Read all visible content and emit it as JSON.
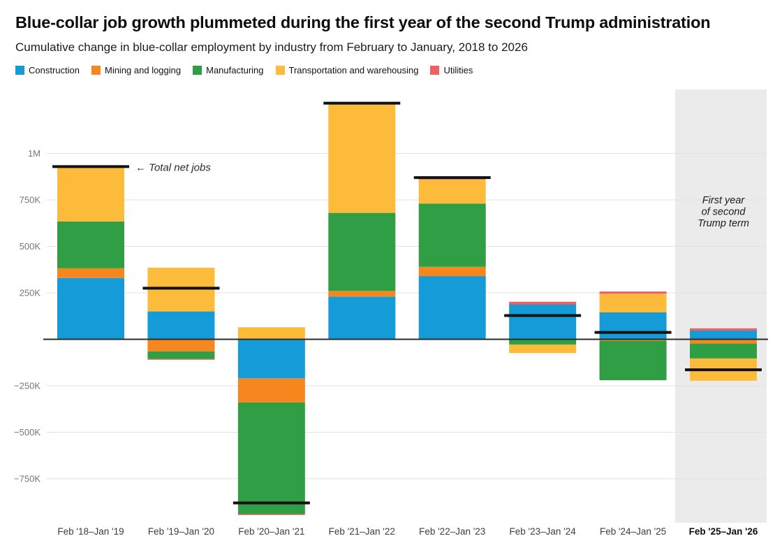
{
  "header": {
    "title": "Blue-collar job growth plummeted during the first year of the second Trump administration",
    "subtitle": "Cumulative change in blue-collar employment by industry from February to January, 2018 to 2026"
  },
  "chart_data": {
    "type": "bar",
    "stacked": true,
    "title": "Blue-collar job growth plummeted during the first year of the second Trump administration",
    "subtitle": "Cumulative change in blue-collar employment by industry from February to January, 2018 to 2026",
    "unit": "jobs",
    "categories": [
      "Feb '18–Jan '19",
      "Feb '19–Jan '20",
      "Feb '20–Jan '21",
      "Feb '21–Jan '22",
      "Feb '22–Jan '23",
      "Feb '23–Jan '24",
      "Feb '24–Jan '25",
      "Feb '25–Jan '26"
    ],
    "emphasized_category_index": 7,
    "series": [
      {
        "name": "Construction",
        "color": "#149bd8",
        "values": [
          330000,
          150000,
          -210000,
          230000,
          340000,
          188000,
          145000,
          47000
        ]
      },
      {
        "name": "Mining and logging",
        "color": "#f6871f",
        "values": [
          52000,
          -65000,
          -130000,
          30000,
          50000,
          0,
          -8000,
          -23000
        ]
      },
      {
        "name": "Manufacturing",
        "color": "#2f9e44",
        "values": [
          252000,
          -40000,
          -600000,
          420000,
          340000,
          -28000,
          -212000,
          -80000
        ]
      },
      {
        "name": "Transportation and warehousing",
        "color": "#fcbb3a",
        "values": [
          295000,
          235000,
          65000,
          590000,
          130000,
          -46000,
          100000,
          -120000
        ]
      },
      {
        "name": "Utilities",
        "color": "#f15f5f",
        "values": [
          0,
          -5000,
          -5000,
          0,
          10000,
          14000,
          12000,
          12000
        ]
      }
    ],
    "totals": [
      929000,
      275000,
      -880000,
      1270000,
      870000,
      128000,
      37000,
      -164000
    ],
    "y_ticks": [
      {
        "value": 1000000,
        "label": "1M"
      },
      {
        "value": 750000,
        "label": "750K"
      },
      {
        "value": 500000,
        "label": "500K"
      },
      {
        "value": 250000,
        "label": "250K"
      },
      {
        "value": -250000,
        "label": "−250K"
      },
      {
        "value": -500000,
        "label": "−500K"
      },
      {
        "value": -750000,
        "label": "−750K"
      }
    ],
    "ylim": [
      -970000,
      1340000
    ],
    "grid": true,
    "legend_position": "top",
    "annotations": {
      "total_net_jobs": "← Total net jobs",
      "highlight_label_lines": [
        "First year",
        "of second",
        "Trump term"
      ]
    },
    "highlight_band": {
      "category_index": 7,
      "color": "#ebebeb"
    },
    "axis_colors": {
      "tick_label": "#767676",
      "category_label": "#3d3d3d",
      "gridline": "#e2e2e2",
      "zero_line": "#2b2b2b",
      "total_marker": "#111111"
    }
  }
}
